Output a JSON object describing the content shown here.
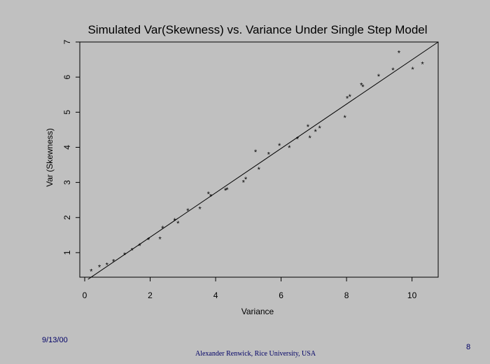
{
  "chart_data": {
    "type": "scatter",
    "title": "Simulated Var(Skewness) vs. Variance Under Single Step Model",
    "xlabel": "Variance",
    "ylabel": "Var (Skewness)",
    "xlim": [
      -0.15,
      10.8
    ],
    "ylim": [
      0.3,
      7.0
    ],
    "xticks": [
      0,
      2,
      4,
      6,
      8,
      10
    ],
    "yticks": [
      1,
      2,
      3,
      4,
      5,
      6,
      7
    ],
    "grid": false,
    "legend": "none",
    "marker": "*",
    "points": [
      [
        0.2,
        0.5
      ],
      [
        0.45,
        0.62
      ],
      [
        0.68,
        0.68
      ],
      [
        0.88,
        0.78
      ],
      [
        1.22,
        0.97
      ],
      [
        1.45,
        1.1
      ],
      [
        1.68,
        1.23
      ],
      [
        1.95,
        1.4
      ],
      [
        2.3,
        1.42
      ],
      [
        2.38,
        1.73
      ],
      [
        2.75,
        1.95
      ],
      [
        2.85,
        1.87
      ],
      [
        3.15,
        2.22
      ],
      [
        3.52,
        2.27
      ],
      [
        3.78,
        2.7
      ],
      [
        3.85,
        2.63
      ],
      [
        4.3,
        2.8
      ],
      [
        4.35,
        2.82
      ],
      [
        4.85,
        3.03
      ],
      [
        4.92,
        3.12
      ],
      [
        5.22,
        3.9
      ],
      [
        5.32,
        3.4
      ],
      [
        5.62,
        3.83
      ],
      [
        5.95,
        4.08
      ],
      [
        6.25,
        4.02
      ],
      [
        6.5,
        4.27
      ],
      [
        6.82,
        4.62
      ],
      [
        6.88,
        4.3
      ],
      [
        7.05,
        4.48
      ],
      [
        7.18,
        4.58
      ],
      [
        7.95,
        4.88
      ],
      [
        8.02,
        5.42
      ],
      [
        8.1,
        5.47
      ],
      [
        8.45,
        5.8
      ],
      [
        8.5,
        5.75
      ],
      [
        8.98,
        6.05
      ],
      [
        9.42,
        6.23
      ],
      [
        9.6,
        6.72
      ],
      [
        10.02,
        6.25
      ],
      [
        10.32,
        6.4
      ]
    ],
    "fit_line": [
      [
        0.1,
        0.24
      ],
      [
        10.8,
        7.0
      ]
    ]
  },
  "footer": {
    "date": "9/13/00",
    "author": "Alexander Renwick, Rice University, USA",
    "page": "8"
  }
}
